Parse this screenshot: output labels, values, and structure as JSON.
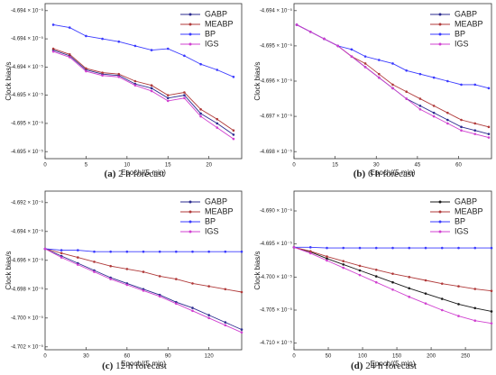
{
  "chart_data": [
    {
      "type": "line",
      "caption_label": "(a)",
      "caption": "2 h forecast",
      "x_label": "Epoch/(5 min)",
      "y_label": "Clock bias/s",
      "legend": "upper right",
      "x": [
        1,
        3,
        5,
        7,
        9,
        11,
        13,
        15,
        17,
        19,
        21,
        23
      ],
      "xlim": [
        0,
        24
      ],
      "xticks": [
        0,
        5,
        10,
        15,
        20
      ],
      "ylim": [
        -4.69505,
        -4.69395
      ],
      "yticks": [
        {
          "value": -4.694,
          "label": "-4.694 × 10⁻⁵"
        },
        {
          "value": -4.6942,
          "label": "-4.694 × 10⁻⁵"
        },
        {
          "value": -4.6944,
          "label": "-4.694 × 10⁻⁵"
        },
        {
          "value": -4.6946,
          "label": "-4.695 × 10⁻⁵"
        },
        {
          "value": -4.6948,
          "label": "-4.695 × 10⁻⁵"
        },
        {
          "value": -4.695,
          "label": "-4.695 × 10⁻⁵"
        }
      ],
      "series": [
        {
          "name": "GABP",
          "color": "#2b2b8f",
          "values": [
            -4.69428,
            -4.69432,
            -4.69442,
            -4.69445,
            -4.69446,
            -4.69452,
            -4.69455,
            -4.69462,
            -4.6946,
            -4.69473,
            -4.6948,
            -4.69488
          ]
        },
        {
          "name": "MEABP",
          "color": "#b03a3a",
          "values": [
            -4.69427,
            -4.69431,
            -4.69441,
            -4.69444,
            -4.69445,
            -4.6945,
            -4.69453,
            -4.6946,
            -4.69458,
            -4.6947,
            -4.69477,
            -4.69485
          ]
        },
        {
          "name": "BP",
          "color": "#3a3aff",
          "values": [
            -4.6941,
            -4.69412,
            -4.69418,
            -4.6942,
            -4.69422,
            -4.69425,
            -4.69428,
            -4.69427,
            -4.69432,
            -4.69438,
            -4.69442,
            -4.69447
          ]
        },
        {
          "name": "IGS",
          "color": "#d040d0",
          "values": [
            -4.69429,
            -4.69433,
            -4.69443,
            -4.69446,
            -4.69447,
            -4.69453,
            -4.69457,
            -4.69464,
            -4.69462,
            -4.69475,
            -4.69483,
            -4.69491
          ]
        }
      ]
    },
    {
      "type": "line",
      "caption_label": "(b)",
      "caption": "6 h forecast",
      "x_label": "Epoch/(5 min)",
      "y_label": "Clock bias/s",
      "legend": "upper right",
      "x": [
        1,
        6,
        11,
        16,
        21,
        26,
        31,
        36,
        41,
        46,
        51,
        56,
        61,
        66,
        71
      ],
      "xlim": [
        0,
        72
      ],
      "xticks": [
        0,
        15,
        30,
        45,
        60
      ],
      "ylim": [
        -4.6982,
        -4.6938
      ],
      "yticks": [
        {
          "value": -4.694,
          "label": "-4.694 × 10⁻⁵"
        },
        {
          "value": -4.695,
          "label": "-4.695 × 10⁻⁵"
        },
        {
          "value": -4.696,
          "label": "-4.696 × 10⁻⁵"
        },
        {
          "value": -4.697,
          "label": "-4.697 × 10⁻⁵"
        },
        {
          "value": -4.698,
          "label": "-4.698 × 10⁻⁵"
        }
      ],
      "series": [
        {
          "name": "GABP",
          "color": "#2b2b8f",
          "values": [
            -4.6944,
            -4.6946,
            -4.6948,
            -4.695,
            -4.6953,
            -4.6956,
            -4.6959,
            -4.6962,
            -4.6965,
            -4.6967,
            -4.6969,
            -4.6971,
            -4.6973,
            -4.6974,
            -4.6975
          ]
        },
        {
          "name": "MEABP",
          "color": "#b03a3a",
          "values": [
            -4.6944,
            -4.6946,
            -4.6948,
            -4.695,
            -4.6953,
            -4.6955,
            -4.6958,
            -4.6961,
            -4.6963,
            -4.6965,
            -4.6967,
            -4.6969,
            -4.6971,
            -4.6972,
            -4.6973
          ]
        },
        {
          "name": "BP",
          "color": "#3a3aff",
          "values": [
            -4.6944,
            -4.6946,
            -4.6948,
            -4.695,
            -4.6951,
            -4.6953,
            -4.6954,
            -4.6955,
            -4.6957,
            -4.6958,
            -4.6959,
            -4.696,
            -4.6961,
            -4.6961,
            -4.6962
          ]
        },
        {
          "name": "IGS",
          "color": "#d040d0",
          "values": [
            -4.6944,
            -4.6946,
            -4.6948,
            -4.695,
            -4.6953,
            -4.6956,
            -4.6959,
            -4.6962,
            -4.6965,
            -4.6968,
            -4.697,
            -4.6972,
            -4.6974,
            -4.6975,
            -4.6976
          ]
        }
      ]
    },
    {
      "type": "line",
      "caption_label": "(c)",
      "caption": "12 h forecast",
      "x_label": "Epoch/(5 min)",
      "y_label": "Clock bias/s",
      "legend": "upper right",
      "x": [
        0,
        12,
        24,
        36,
        48,
        60,
        72,
        84,
        96,
        108,
        120,
        132,
        144
      ],
      "xlim": [
        0,
        144
      ],
      "xticks": [
        0,
        30,
        60,
        90,
        120
      ],
      "ylim": [
        -4.7022,
        -4.6912
      ],
      "yticks": [
        {
          "value": -4.692,
          "label": "-4.692 × 10⁻⁵"
        },
        {
          "value": -4.694,
          "label": "-4.694 × 10⁻⁵"
        },
        {
          "value": -4.696,
          "label": "-4.696 × 10⁻⁵"
        },
        {
          "value": -4.698,
          "label": "-4.698 × 10⁻⁵"
        },
        {
          "value": -4.7,
          "label": "-4.700 × 10⁻⁵"
        },
        {
          "value": -4.702,
          "label": "-4.702 × 10⁻⁵"
        }
      ],
      "series": [
        {
          "name": "GABP",
          "color": "#2b2b8f",
          "values": [
            -4.6952,
            -4.6957,
            -4.6962,
            -4.6967,
            -4.6972,
            -4.6976,
            -4.698,
            -4.6984,
            -4.6989,
            -4.6993,
            -4.6998,
            -4.7003,
            -4.7008
          ]
        },
        {
          "name": "MEABP",
          "color": "#b03a3a",
          "values": [
            -4.6952,
            -4.6955,
            -4.6958,
            -4.6961,
            -4.6964,
            -4.6966,
            -4.6968,
            -4.6971,
            -4.6973,
            -4.6976,
            -4.6978,
            -4.698,
            -4.6982
          ]
        },
        {
          "name": "BP",
          "color": "#3a3aff",
          "values": [
            -4.6952,
            -4.6953,
            -4.6953,
            -4.6954,
            -4.6954,
            -4.6954,
            -4.6954,
            -4.6954,
            -4.6954,
            -4.6954,
            -4.6954,
            -4.6954,
            -4.6954
          ]
        },
        {
          "name": "IGS",
          "color": "#d040d0",
          "values": [
            -4.6952,
            -4.6958,
            -4.6963,
            -4.6968,
            -4.6973,
            -4.6977,
            -4.6981,
            -4.6985,
            -4.699,
            -4.6995,
            -4.7,
            -4.7005,
            -4.701
          ]
        }
      ]
    },
    {
      "type": "line",
      "caption_label": "(d)",
      "caption": "24 h forecast",
      "x_label": "Epoch/(5 min)",
      "y_label": "Clock bias/s",
      "legend": "upper right",
      "x": [
        0,
        24,
        48,
        72,
        96,
        120,
        144,
        168,
        192,
        216,
        240,
        264,
        288
      ],
      "xlim": [
        0,
        288
      ],
      "xticks": [
        0,
        50,
        100,
        150,
        200,
        250
      ],
      "ylim": [
        -4.711,
        -4.687
      ],
      "yticks": [
        {
          "value": -4.69,
          "label": "-4.690 × 10⁻⁵"
        },
        {
          "value": -4.695,
          "label": "-4.695 × 10⁻⁵"
        },
        {
          "value": -4.7,
          "label": "-4.700 × 10⁻⁵"
        },
        {
          "value": -4.705,
          "label": "-4.705 × 10⁻⁵"
        },
        {
          "value": -4.71,
          "label": "-4.710 × 10⁻⁵"
        }
      ],
      "series": [
        {
          "name": "GABP",
          "color": "#1a1a1a",
          "values": [
            -4.6955,
            -4.6962,
            -4.6972,
            -4.6981,
            -4.699,
            -4.6999,
            -4.7008,
            -4.7017,
            -4.7025,
            -4.7033,
            -4.7041,
            -4.7047,
            -4.7052
          ]
        },
        {
          "name": "MEABP",
          "color": "#b03a3a",
          "values": [
            -4.6955,
            -4.6961,
            -4.6969,
            -4.6976,
            -4.6983,
            -4.6989,
            -4.6995,
            -4.7,
            -4.7005,
            -4.701,
            -4.7014,
            -4.7018,
            -4.7021
          ]
        },
        {
          "name": "BP",
          "color": "#3a3aff",
          "values": [
            -4.6955,
            -4.6955,
            -4.6956,
            -4.6956,
            -4.6956,
            -4.6956,
            -4.6956,
            -4.6956,
            -4.6956,
            -4.6956,
            -4.6956,
            -4.6956,
            -4.6956
          ]
        },
        {
          "name": "IGS",
          "color": "#d040d0",
          "values": [
            -4.6955,
            -4.6964,
            -4.6975,
            -4.6986,
            -4.6997,
            -4.7008,
            -4.7019,
            -4.703,
            -4.704,
            -4.705,
            -4.7059,
            -4.7066,
            -4.707
          ]
        }
      ]
    }
  ]
}
